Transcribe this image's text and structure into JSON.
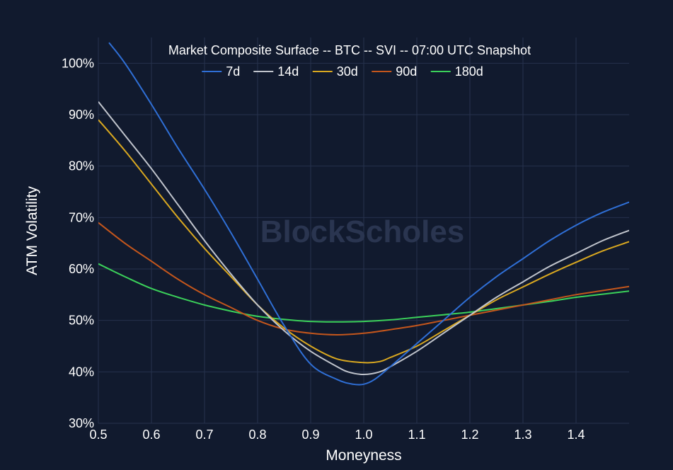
{
  "chart_data": {
    "type": "line",
    "title": "Market Composite Surface -- BTC -- SVI -- 07:00 UTC Snapshot",
    "xlabel": "Moneyness",
    "ylabel": "ATM Volatility",
    "xlim": [
      0.5,
      1.5
    ],
    "ylim": [
      30,
      105
    ],
    "x_ticks": [
      "0.5",
      "0.6",
      "0.7",
      "0.8",
      "0.9",
      "1.0",
      "1.1",
      "1.2",
      "1.3",
      "1.4"
    ],
    "y_ticks": [
      "30%",
      "40%",
      "50%",
      "60%",
      "70%",
      "80%",
      "90%",
      "100%"
    ],
    "grid": true,
    "legend_position": "top-center",
    "watermark": "BlockScholes",
    "colors": {
      "background": "#111a2e",
      "grid": "#26324d"
    },
    "series": [
      {
        "name": "7d",
        "color": "#2f6fd6",
        "x": [
          0.52,
          0.55,
          0.6,
          0.65,
          0.7,
          0.75,
          0.8,
          0.85,
          0.9,
          0.95,
          0.98,
          1.0,
          1.02,
          1.05,
          1.1,
          1.15,
          1.2,
          1.25,
          1.3,
          1.35,
          1.4,
          1.45,
          1.5
        ],
        "y": [
          104,
          100,
          92,
          83.5,
          75.5,
          67,
          58,
          49,
          41.5,
          38.5,
          37.6,
          37.6,
          38.5,
          41,
          45.5,
          50,
          54.5,
          58.5,
          62,
          65.5,
          68.5,
          71,
          73
        ]
      },
      {
        "name": "14d",
        "color": "#c0c4cc",
        "x": [
          0.5,
          0.55,
          0.6,
          0.65,
          0.7,
          0.75,
          0.8,
          0.85,
          0.9,
          0.95,
          0.97,
          1.0,
          1.03,
          1.05,
          1.1,
          1.15,
          1.2,
          1.25,
          1.3,
          1.35,
          1.4,
          1.45,
          1.5
        ],
        "y": [
          92.5,
          86,
          79.5,
          72.5,
          65.5,
          59,
          53,
          48,
          44,
          41,
          40,
          39.5,
          40,
          41,
          44,
          47.5,
          51,
          54.5,
          57.5,
          60.5,
          63,
          65.5,
          67.5
        ]
      },
      {
        "name": "30d",
        "color": "#d9a820",
        "x": [
          0.5,
          0.55,
          0.6,
          0.65,
          0.7,
          0.75,
          0.8,
          0.85,
          0.9,
          0.95,
          1.0,
          1.03,
          1.05,
          1.1,
          1.15,
          1.2,
          1.25,
          1.3,
          1.35,
          1.4,
          1.45,
          1.5
        ],
        "y": [
          89,
          83,
          76.5,
          70,
          64,
          58.5,
          53,
          48.5,
          45,
          42.5,
          41.8,
          42,
          42.8,
          45,
          48,
          51,
          54,
          56.5,
          59,
          61.3,
          63.5,
          65.3
        ]
      },
      {
        "name": "90d",
        "color": "#c4561c",
        "x": [
          0.5,
          0.55,
          0.6,
          0.65,
          0.7,
          0.75,
          0.8,
          0.85,
          0.9,
          0.95,
          1.0,
          1.05,
          1.1,
          1.15,
          1.2,
          1.25,
          1.3,
          1.35,
          1.4,
          1.45,
          1.5
        ],
        "y": [
          69,
          65,
          61.5,
          58,
          55,
          52.5,
          50,
          48.3,
          47.5,
          47.2,
          47.5,
          48.2,
          49,
          50,
          51,
          52,
          53,
          54,
          55,
          55.8,
          56.6
        ]
      },
      {
        "name": "180d",
        "color": "#3bd15a",
        "x": [
          0.5,
          0.55,
          0.6,
          0.65,
          0.7,
          0.75,
          0.8,
          0.85,
          0.9,
          0.95,
          1.0,
          1.05,
          1.1,
          1.15,
          1.2,
          1.25,
          1.3,
          1.35,
          1.4,
          1.45,
          1.5
        ],
        "y": [
          61,
          58.5,
          56.2,
          54.5,
          53,
          51.8,
          50.8,
          50.2,
          49.8,
          49.7,
          49.8,
          50.1,
          50.6,
          51.1,
          51.6,
          52.3,
          53,
          53.7,
          54.5,
          55.1,
          55.7
        ]
      }
    ]
  }
}
